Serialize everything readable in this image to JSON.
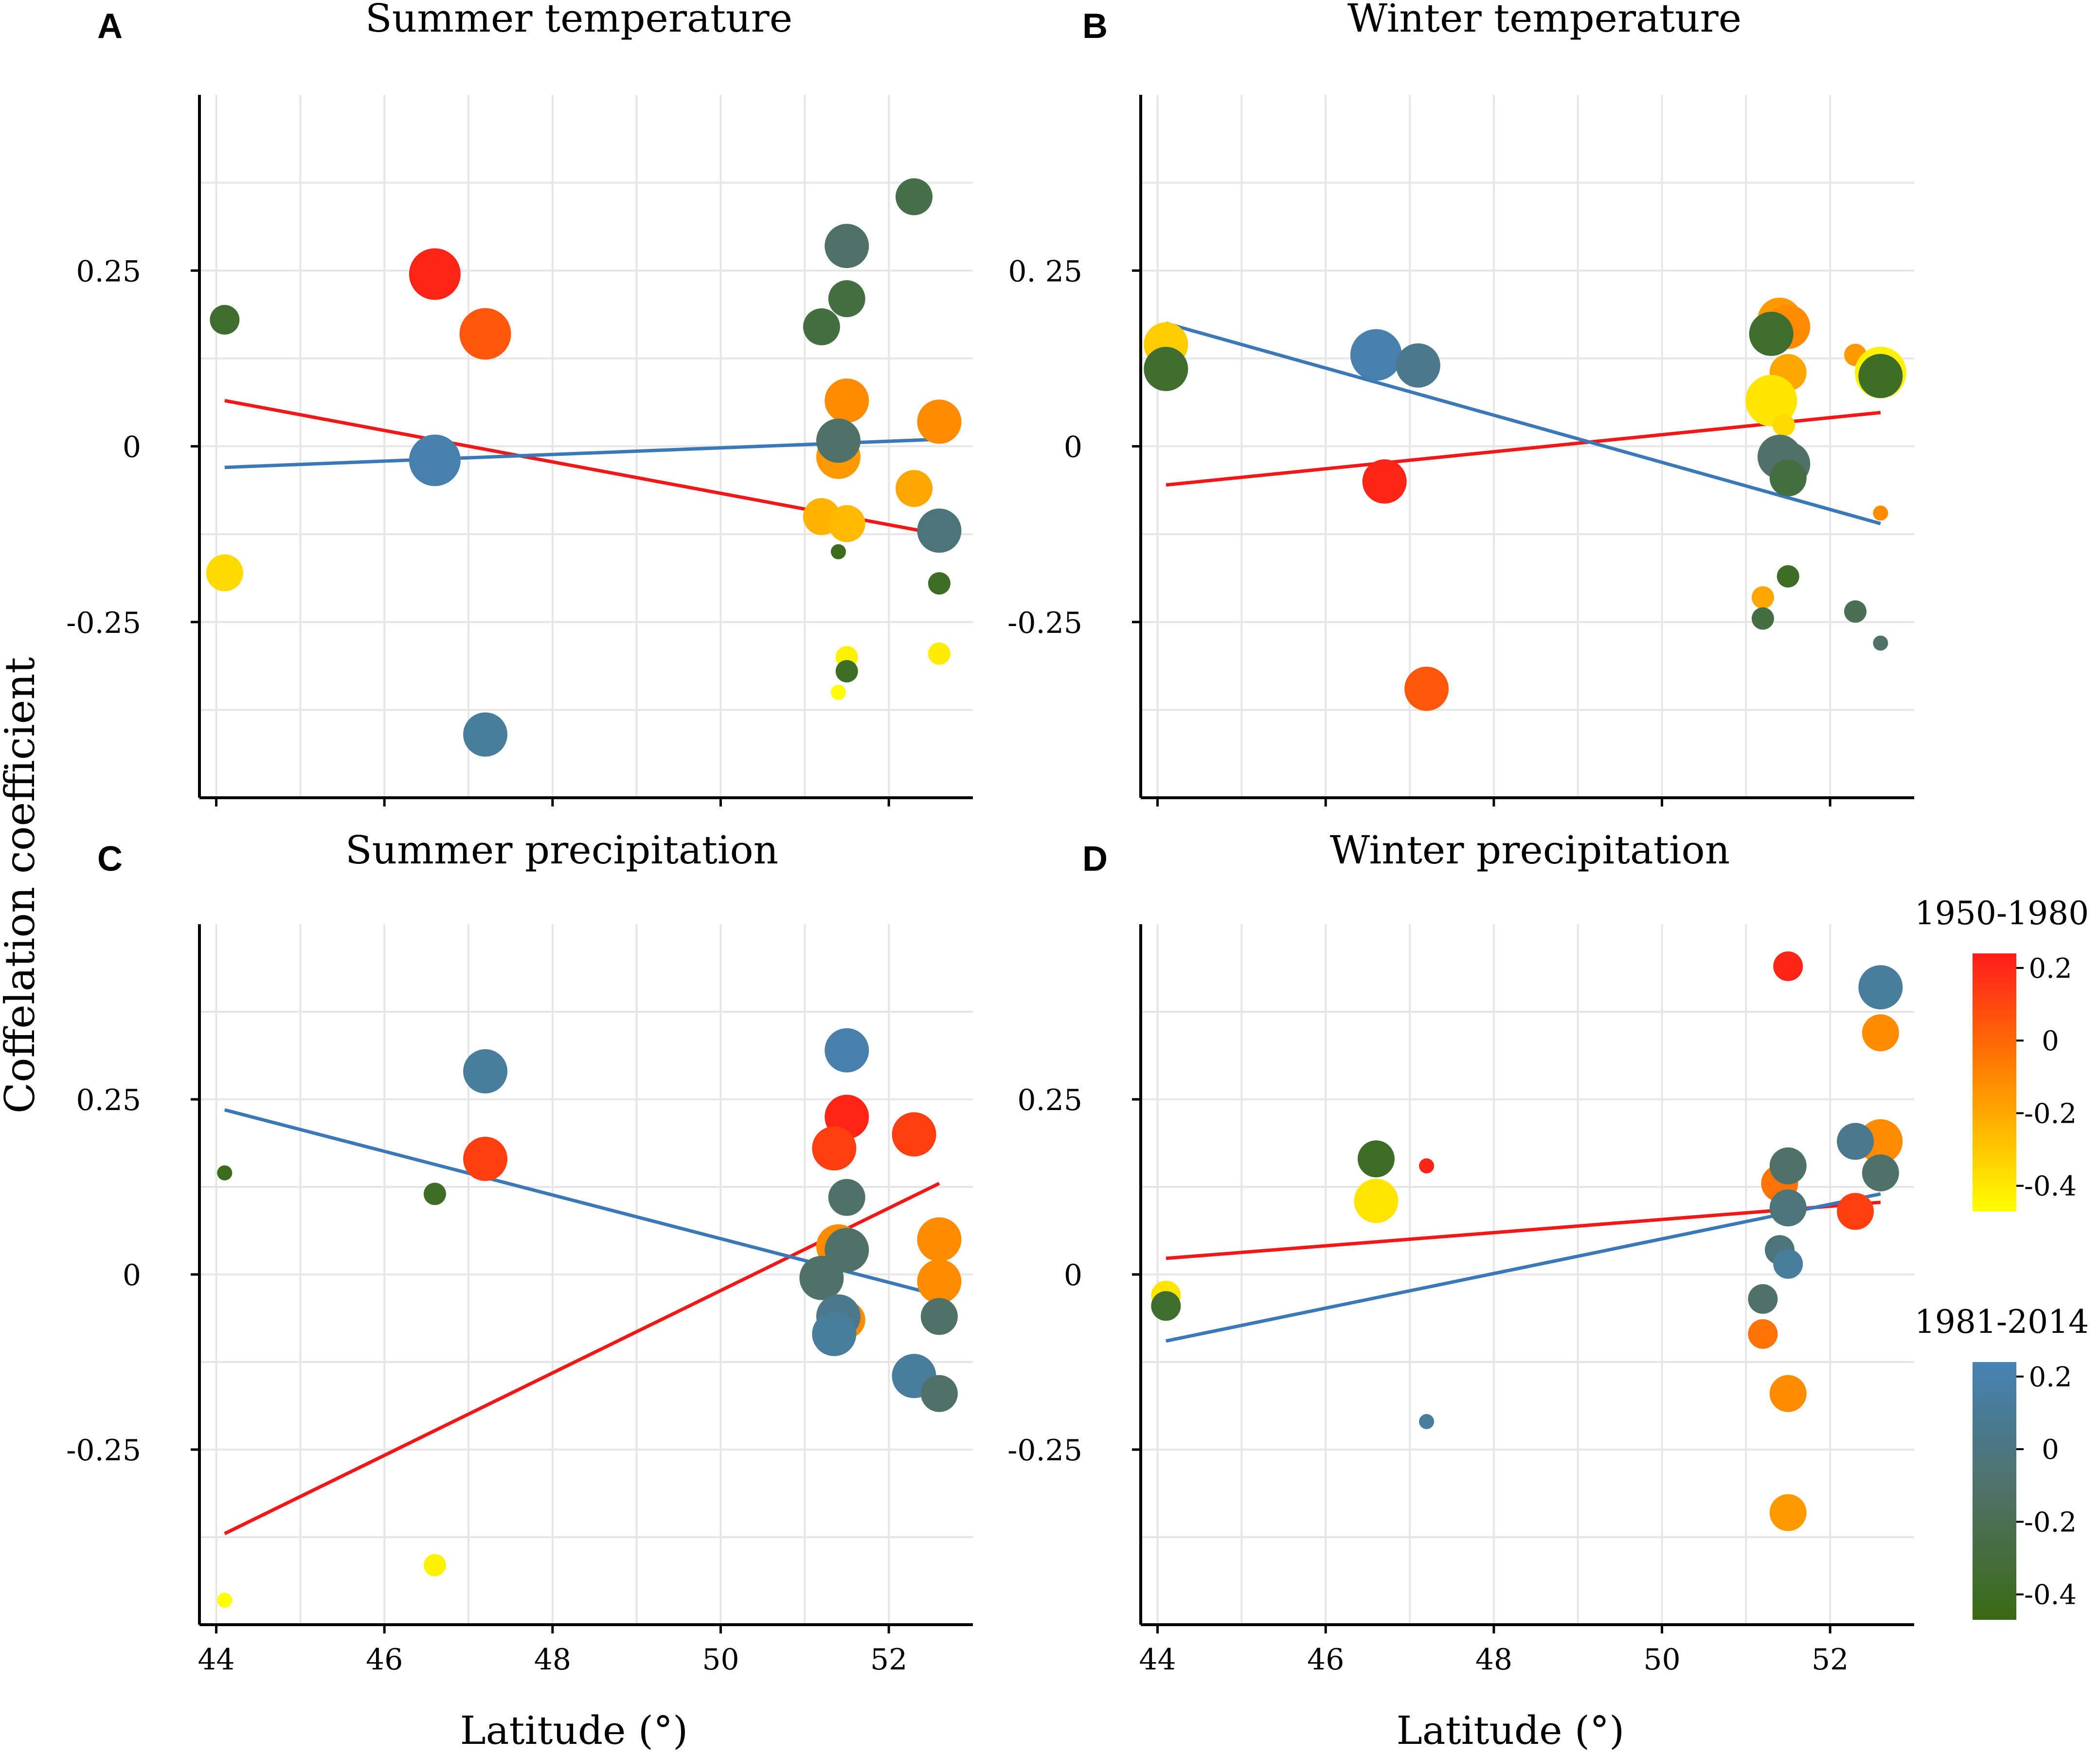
{
  "figure": {
    "y_axis_label": "Coffelation coefficient",
    "legends": [
      {
        "title": "1950-1980",
        "ticks": [
          "0.2",
          "0",
          "-0.2",
          "-0.4"
        ],
        "tick_values": [
          0.2,
          0,
          -0.2,
          -0.4
        ],
        "colors": [
          "#ff1a1a",
          "#ff8c00",
          "#ffff00"
        ]
      },
      {
        "title": "1981-2014",
        "ticks": [
          "0.2",
          "0",
          "-0.2",
          "-0.4"
        ],
        "tick_values": [
          0.2,
          0,
          -0.2,
          -0.4
        ],
        "colors": [
          "#4682b4",
          "#4f7168",
          "#3a6a14"
        ]
      }
    ],
    "series_colors": {
      "1950-1980": "#f21818",
      "1981-2014": "#3a78b8"
    }
  },
  "chart_data": [
    {
      "panel": "A",
      "type": "scatter",
      "title": "Summer temperature",
      "xlabel": "",
      "ylabel": "",
      "xlim": [
        43.8,
        53.0
      ],
      "ylim": [
        -0.5,
        0.5
      ],
      "x_ticks": [],
      "y_ticks": [
        0.25,
        0,
        -0.25
      ],
      "y_tick_labels": [
        "0.25",
        "0",
        "-0.25"
      ],
      "series": [
        {
          "name": "1950-1980",
          "points": [
            {
              "x": 46.6,
              "y": 0.245,
              "size": 3,
              "value": 0.2
            },
            {
              "x": 47.2,
              "y": 0.16,
              "size": 3,
              "value": 0.1
            },
            {
              "x": 44.1,
              "y": -0.18,
              "size": 2,
              "value": -0.3
            },
            {
              "x": 51.5,
              "y": 0.065,
              "size": 2.5,
              "value": 0.0
            },
            {
              "x": 51.4,
              "y": -0.015,
              "size": 2.5,
              "value": -0.05
            },
            {
              "x": 51.2,
              "y": -0.1,
              "size": 2,
              "value": -0.15
            },
            {
              "x": 51.5,
              "y": -0.11,
              "size": 2,
              "value": -0.18
            },
            {
              "x": 52.3,
              "y": -0.06,
              "size": 2,
              "value": -0.1
            },
            {
              "x": 52.6,
              "y": 0.035,
              "size": 2.5,
              "value": 0.0
            },
            {
              "x": 51.5,
              "y": -0.3,
              "size": 1,
              "value": -0.4
            },
            {
              "x": 51.4,
              "y": -0.35,
              "size": 0.5,
              "value": -0.45
            },
            {
              "x": 52.6,
              "y": -0.295,
              "size": 1,
              "value": -0.38
            }
          ],
          "trend": [
            [
              44.1,
              0.065
            ],
            [
              52.6,
              -0.125
            ]
          ]
        },
        {
          "name": "1981-2014",
          "points": [
            {
              "x": 44.1,
              "y": 0.18,
              "size": 1.5,
              "value": -0.3
            },
            {
              "x": 46.6,
              "y": -0.02,
              "size": 3,
              "value": 0.2
            },
            {
              "x": 47.2,
              "y": -0.41,
              "size": 2.5,
              "value": 0.15
            },
            {
              "x": 51.5,
              "y": 0.285,
              "size": 2.5,
              "value": 0.0
            },
            {
              "x": 52.3,
              "y": 0.355,
              "size": 2,
              "value": -0.15
            },
            {
              "x": 51.5,
              "y": 0.21,
              "size": 2,
              "value": -0.2
            },
            {
              "x": 51.2,
              "y": 0.17,
              "size": 2,
              "value": -0.2
            },
            {
              "x": 51.4,
              "y": 0.008,
              "size": 2.5,
              "value": 0.0
            },
            {
              "x": 52.6,
              "y": -0.12,
              "size": 2.5,
              "value": 0.05
            },
            {
              "x": 51.4,
              "y": -0.15,
              "size": 0.5,
              "value": -0.4
            },
            {
              "x": 51.5,
              "y": -0.32,
              "size": 1,
              "value": -0.35
            },
            {
              "x": 52.6,
              "y": -0.195,
              "size": 1,
              "value": -0.35
            }
          ],
          "trend": [
            [
              44.1,
              -0.03
            ],
            [
              52.6,
              0.01
            ]
          ]
        }
      ]
    },
    {
      "panel": "B",
      "type": "scatter",
      "title": "Winter temperature",
      "xlabel": "",
      "ylabel": "",
      "xlim": [
        43.8,
        53.0
      ],
      "ylim": [
        -0.5,
        0.5
      ],
      "x_ticks": [],
      "y_ticks": [
        0.25,
        0,
        -0.25
      ],
      "y_tick_labels": [
        "0. 25",
        "0",
        "-0.25"
      ],
      "series": [
        {
          "name": "1950-1980",
          "points": [
            {
              "x": 44.1,
              "y": 0.145,
              "size": 2.5,
              "value": -0.25
            },
            {
              "x": 46.7,
              "y": -0.05,
              "size": 2.5,
              "value": 0.2
            },
            {
              "x": 47.2,
              "y": -0.345,
              "size": 2.5,
              "value": 0.1
            },
            {
              "x": 51.4,
              "y": 0.18,
              "size": 2.5,
              "value": -0.05
            },
            {
              "x": 51.5,
              "y": 0.17,
              "size": 2.5,
              "value": 0.0
            },
            {
              "x": 51.5,
              "y": 0.105,
              "size": 2,
              "value": -0.1
            },
            {
              "x": 51.3,
              "y": 0.065,
              "size": 3,
              "value": -0.35
            },
            {
              "x": 51.45,
              "y": 0.03,
              "size": 1,
              "value": -0.3
            },
            {
              "x": 52.3,
              "y": 0.13,
              "size": 1,
              "value": -0.05
            },
            {
              "x": 52.6,
              "y": 0.105,
              "size": 3,
              "value": -0.4
            },
            {
              "x": 52.6,
              "y": -0.095,
              "size": 0.5,
              "value": 0.0
            },
            {
              "x": 51.2,
              "y": -0.215,
              "size": 1,
              "value": -0.1
            }
          ],
          "trend": [
            [
              44.1,
              -0.055
            ],
            [
              52.6,
              0.048
            ]
          ]
        },
        {
          "name": "1981-2014",
          "points": [
            {
              "x": 44.1,
              "y": 0.11,
              "size": 2.5,
              "value": -0.3
            },
            {
              "x": 46.6,
              "y": 0.13,
              "size": 3,
              "value": 0.2
            },
            {
              "x": 47.1,
              "y": 0.115,
              "size": 2.5,
              "value": 0.1
            },
            {
              "x": 51.3,
              "y": 0.16,
              "size": 2.5,
              "value": -0.3
            },
            {
              "x": 51.4,
              "y": -0.015,
              "size": 2.5,
              "value": 0.0
            },
            {
              "x": 51.5,
              "y": -0.025,
              "size": 2.5,
              "value": 0.0
            },
            {
              "x": 51.5,
              "y": -0.045,
              "size": 2,
              "value": -0.2
            },
            {
              "x": 51.5,
              "y": -0.185,
              "size": 1,
              "value": -0.35
            },
            {
              "x": 51.2,
              "y": -0.245,
              "size": 1,
              "value": -0.2
            },
            {
              "x": 52.3,
              "y": -0.235,
              "size": 1,
              "value": -0.1
            },
            {
              "x": 52.6,
              "y": -0.28,
              "size": 0.5,
              "value": 0.0
            },
            {
              "x": 52.6,
              "y": 0.1,
              "size": 2.5,
              "value": -0.35
            }
          ],
          "trend": [
            [
              44.1,
              0.175
            ],
            [
              52.6,
              -0.11
            ]
          ]
        }
      ]
    },
    {
      "panel": "C",
      "type": "scatter",
      "title": "Summer precipitation",
      "xlabel": "Latitude (°)",
      "ylabel": "",
      "xlim": [
        43.8,
        53.0
      ],
      "ylim": [
        -0.5,
        0.5
      ],
      "x_ticks": [
        44,
        46,
        48,
        50,
        52
      ],
      "y_ticks": [
        0.25,
        0,
        -0.25
      ],
      "y_tick_labels": [
        "0.25",
        "0",
        "-0.25"
      ],
      "series": [
        {
          "name": "1950-1980",
          "points": [
            {
              "x": 47.2,
              "y": 0.165,
              "size": 2.5,
              "value": 0.15
            },
            {
              "x": 51.5,
              "y": 0.225,
              "size": 2.5,
              "value": 0.2
            },
            {
              "x": 51.35,
              "y": 0.18,
              "size": 2.5,
              "value": 0.15
            },
            {
              "x": 52.3,
              "y": 0.2,
              "size": 2.5,
              "value": 0.15
            },
            {
              "x": 51.4,
              "y": 0.04,
              "size": 2.5,
              "value": 0.0
            },
            {
              "x": 52.6,
              "y": 0.05,
              "size": 2.5,
              "value": 0.0
            },
            {
              "x": 52.6,
              "y": -0.01,
              "size": 2.5,
              "value": 0.0
            },
            {
              "x": 51.5,
              "y": -0.065,
              "size": 2,
              "value": 0.0
            },
            {
              "x": 46.6,
              "y": -0.415,
              "size": 1,
              "value": -0.4
            },
            {
              "x": 44.1,
              "y": -0.465,
              "size": 0.5,
              "value": -0.45
            }
          ],
          "trend": [
            [
              44.1,
              -0.37
            ],
            [
              52.6,
              0.13
            ]
          ]
        },
        {
          "name": "1981-2014",
          "points": [
            {
              "x": 47.2,
              "y": 0.29,
              "size": 2.5,
              "value": 0.15
            },
            {
              "x": 51.5,
              "y": 0.32,
              "size": 2.5,
              "value": 0.2
            },
            {
              "x": 51.5,
              "y": 0.11,
              "size": 2,
              "value": 0.0
            },
            {
              "x": 51.5,
              "y": 0.035,
              "size": 2.5,
              "value": 0.0
            },
            {
              "x": 51.2,
              "y": -0.005,
              "size": 2.5,
              "value": 0.0
            },
            {
              "x": 51.4,
              "y": -0.06,
              "size": 2.5,
              "value": 0.1
            },
            {
              "x": 51.35,
              "y": -0.085,
              "size": 2.5,
              "value": 0.15
            },
            {
              "x": 52.3,
              "y": -0.145,
              "size": 2.5,
              "value": 0.15
            },
            {
              "x": 52.6,
              "y": -0.06,
              "size": 2,
              "value": 0.0
            },
            {
              "x": 52.6,
              "y": -0.17,
              "size": 2,
              "value": 0.0
            },
            {
              "x": 44.1,
              "y": 0.145,
              "size": 0.5,
              "value": -0.4
            },
            {
              "x": 46.6,
              "y": 0.115,
              "size": 1,
              "value": -0.35
            }
          ],
          "trend": [
            [
              44.1,
              0.235
            ],
            [
              52.6,
              -0.03
            ]
          ]
        }
      ]
    },
    {
      "panel": "D",
      "type": "scatter",
      "title": "Winter precipitation",
      "xlabel": "Latitude (°)",
      "ylabel": "",
      "xlim": [
        43.8,
        53.0
      ],
      "ylim": [
        -0.5,
        0.5
      ],
      "x_ticks": [
        44,
        46,
        48,
        50,
        52
      ],
      "y_ticks": [
        0.25,
        0,
        -0.25
      ],
      "y_tick_labels": [
        "0.25",
        "0",
        "-0.25"
      ],
      "series": [
        {
          "name": "1950-1980",
          "points": [
            {
              "x": 51.5,
              "y": 0.44,
              "size": 1.5,
              "value": 0.2
            },
            {
              "x": 52.6,
              "y": 0.345,
              "size": 2,
              "value": 0.0
            },
            {
              "x": 52.6,
              "y": 0.19,
              "size": 2.5,
              "value": 0.0
            },
            {
              "x": 52.3,
              "y": 0.09,
              "size": 2,
              "value": 0.15
            },
            {
              "x": 46.6,
              "y": 0.105,
              "size": 2.5,
              "value": -0.35
            },
            {
              "x": 47.2,
              "y": 0.155,
              "size": 0.5,
              "value": 0.2
            },
            {
              "x": 51.4,
              "y": 0.13,
              "size": 2,
              "value": 0.05
            },
            {
              "x": 51.2,
              "y": -0.085,
              "size": 1.5,
              "value": 0.05
            },
            {
              "x": 51.5,
              "y": -0.17,
              "size": 2,
              "value": 0.0
            },
            {
              "x": 51.5,
              "y": -0.34,
              "size": 2,
              "value": -0.05
            },
            {
              "x": 44.1,
              "y": -0.03,
              "size": 1.5,
              "value": -0.35
            }
          ],
          "trend": [
            [
              44.1,
              0.023
            ],
            [
              52.6,
              0.103
            ]
          ]
        },
        {
          "name": "1981-2014",
          "points": [
            {
              "x": 52.6,
              "y": 0.41,
              "size": 2.5,
              "value": 0.15
            },
            {
              "x": 52.3,
              "y": 0.19,
              "size": 2,
              "value": 0.1
            },
            {
              "x": 52.6,
              "y": 0.145,
              "size": 2,
              "value": 0.0
            },
            {
              "x": 51.5,
              "y": 0.155,
              "size": 2,
              "value": 0.0
            },
            {
              "x": 51.5,
              "y": 0.095,
              "size": 2,
              "value": 0.05
            },
            {
              "x": 46.6,
              "y": 0.165,
              "size": 2,
              "value": -0.35
            },
            {
              "x": 51.4,
              "y": 0.035,
              "size": 1.5,
              "value": 0.05
            },
            {
              "x": 51.5,
              "y": 0.015,
              "size": 1.5,
              "value": 0.15
            },
            {
              "x": 51.2,
              "y": -0.035,
              "size": 1.5,
              "value": 0.0
            },
            {
              "x": 44.1,
              "y": -0.045,
              "size": 1.5,
              "value": -0.3
            },
            {
              "x": 47.2,
              "y": -0.21,
              "size": 0.5,
              "value": 0.15
            }
          ],
          "trend": [
            [
              44.1,
              -0.095
            ],
            [
              52.6,
              0.115
            ]
          ]
        }
      ]
    }
  ]
}
